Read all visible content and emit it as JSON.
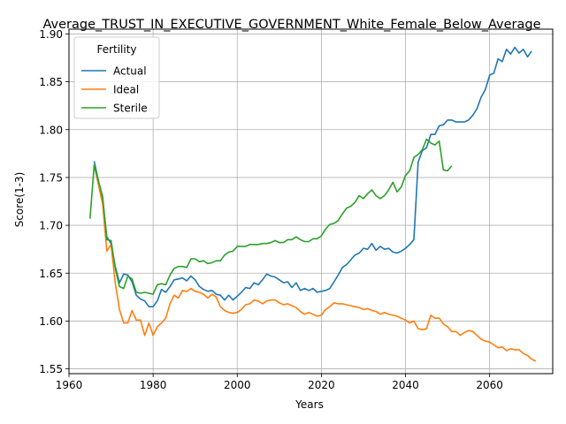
{
  "chart_data": {
    "type": "line",
    "title": "Average_TRUST_IN_EXECUTIVE_GOVERNMENT_White_Female_Below_Average",
    "xlabel": "Years",
    "ylabel": "Score(1-3)",
    "xlim": [
      1960,
      2075
    ],
    "ylim": [
      1.545,
      1.905
    ],
    "xticks": [
      1960,
      1980,
      2000,
      2020,
      2040,
      2060
    ],
    "yticks": [
      1.55,
      1.6,
      1.65,
      1.7,
      1.75,
      1.8,
      1.85,
      1.9
    ],
    "grid": true,
    "legend": {
      "title": "Fertility",
      "position": "top-left"
    },
    "series": [
      {
        "name": "Actual",
        "color": "#1f77b4",
        "points": [
          [
            1966,
            1.767
          ],
          [
            1968,
            1.726
          ],
          [
            1969,
            1.688
          ],
          [
            1970,
            1.681
          ],
          [
            1971,
            1.657
          ],
          [
            1972,
            1.64
          ],
          [
            1973,
            1.649
          ],
          [
            1974,
            1.648
          ],
          [
            1975,
            1.641
          ],
          [
            1976,
            1.627
          ],
          [
            1977,
            1.623
          ],
          [
            1978,
            1.621
          ],
          [
            1979,
            1.615
          ],
          [
            1980,
            1.615
          ],
          [
            1981,
            1.621
          ],
          [
            1982,
            1.633
          ],
          [
            1983,
            1.63
          ],
          [
            1984,
            1.636
          ],
          [
            1985,
            1.643
          ],
          [
            1986,
            1.644
          ],
          [
            1987,
            1.645
          ],
          [
            1988,
            1.642
          ],
          [
            1989,
            1.647
          ],
          [
            1990,
            1.643
          ],
          [
            1991,
            1.636
          ],
          [
            1992,
            1.633
          ],
          [
            1993,
            1.631
          ],
          [
            1994,
            1.632
          ],
          [
            1995,
            1.628
          ],
          [
            1996,
            1.627
          ],
          [
            1997,
            1.622
          ],
          [
            1998,
            1.627
          ],
          [
            1999,
            1.622
          ],
          [
            2000,
            1.626
          ],
          [
            2001,
            1.63
          ],
          [
            2002,
            1.635
          ],
          [
            2003,
            1.634
          ],
          [
            2004,
            1.64
          ],
          [
            2005,
            1.638
          ],
          [
            2006,
            1.643
          ],
          [
            2007,
            1.649
          ],
          [
            2008,
            1.647
          ],
          [
            2009,
            1.646
          ],
          [
            2010,
            1.643
          ],
          [
            2011,
            1.64
          ],
          [
            2012,
            1.641
          ],
          [
            2013,
            1.635
          ],
          [
            2014,
            1.64
          ],
          [
            2015,
            1.632
          ],
          [
            2016,
            1.634
          ],
          [
            2017,
            1.632
          ],
          [
            2018,
            1.634
          ],
          [
            2019,
            1.63
          ],
          [
            2020,
            1.631
          ],
          [
            2021,
            1.632
          ],
          [
            2022,
            1.634
          ],
          [
            2023,
            1.641
          ],
          [
            2024,
            1.648
          ],
          [
            2025,
            1.656
          ],
          [
            2026,
            1.659
          ],
          [
            2027,
            1.664
          ],
          [
            2028,
            1.669
          ],
          [
            2029,
            1.671
          ],
          [
            2030,
            1.676
          ],
          [
            2031,
            1.675
          ],
          [
            2032,
            1.681
          ],
          [
            2033,
            1.674
          ],
          [
            2034,
            1.678
          ],
          [
            2035,
            1.675
          ],
          [
            2036,
            1.676
          ],
          [
            2037,
            1.672
          ],
          [
            2038,
            1.671
          ],
          [
            2039,
            1.673
          ],
          [
            2040,
            1.676
          ],
          [
            2041,
            1.68
          ],
          [
            2042,
            1.685
          ],
          [
            2043,
            1.766
          ],
          [
            2044,
            1.778
          ],
          [
            2045,
            1.781
          ],
          [
            2046,
            1.795
          ],
          [
            2047,
            1.795
          ],
          [
            2048,
            1.804
          ],
          [
            2049,
            1.805
          ],
          [
            2050,
            1.81
          ],
          [
            2051,
            1.81
          ],
          [
            2052,
            1.808
          ],
          [
            2053,
            1.808
          ],
          [
            2054,
            1.808
          ],
          [
            2055,
            1.81
          ],
          [
            2056,
            1.815
          ],
          [
            2057,
            1.822
          ],
          [
            2058,
            1.834
          ],
          [
            2059,
            1.842
          ],
          [
            2060,
            1.857
          ],
          [
            2061,
            1.859
          ],
          [
            2062,
            1.874
          ],
          [
            2063,
            1.871
          ],
          [
            2064,
            1.884
          ],
          [
            2065,
            1.879
          ],
          [
            2066,
            1.886
          ],
          [
            2067,
            1.88
          ],
          [
            2068,
            1.884
          ],
          [
            2069,
            1.876
          ],
          [
            2070,
            1.882
          ]
        ]
      },
      {
        "name": "Ideal",
        "color": "#ff7f0e",
        "points": [
          [
            1966,
            1.763
          ],
          [
            1968,
            1.722
          ],
          [
            1969,
            1.673
          ],
          [
            1970,
            1.68
          ],
          [
            1971,
            1.64
          ],
          [
            1972,
            1.612
          ],
          [
            1973,
            1.598
          ],
          [
            1974,
            1.598
          ],
          [
            1975,
            1.611
          ],
          [
            1976,
            1.601
          ],
          [
            1977,
            1.601
          ],
          [
            1978,
            1.585
          ],
          [
            1979,
            1.598
          ],
          [
            1980,
            1.585
          ],
          [
            1981,
            1.594
          ],
          [
            1982,
            1.598
          ],
          [
            1983,
            1.603
          ],
          [
            1984,
            1.618
          ],
          [
            1985,
            1.627
          ],
          [
            1986,
            1.624
          ],
          [
            1987,
            1.632
          ],
          [
            1988,
            1.631
          ],
          [
            1989,
            1.634
          ],
          [
            1990,
            1.631
          ],
          [
            1991,
            1.63
          ],
          [
            1992,
            1.628
          ],
          [
            1993,
            1.624
          ],
          [
            1994,
            1.628
          ],
          [
            1995,
            1.625
          ],
          [
            1996,
            1.615
          ],
          [
            1997,
            1.611
          ],
          [
            1998,
            1.609
          ],
          [
            1999,
            1.608
          ],
          [
            2000,
            1.609
          ],
          [
            2001,
            1.612
          ],
          [
            2002,
            1.617
          ],
          [
            2003,
            1.618
          ],
          [
            2004,
            1.622
          ],
          [
            2005,
            1.621
          ],
          [
            2006,
            1.618
          ],
          [
            2007,
            1.621
          ],
          [
            2008,
            1.622
          ],
          [
            2009,
            1.622
          ],
          [
            2010,
            1.619
          ],
          [
            2011,
            1.617
          ],
          [
            2012,
            1.618
          ],
          [
            2013,
            1.616
          ],
          [
            2014,
            1.614
          ],
          [
            2015,
            1.61
          ],
          [
            2016,
            1.607
          ],
          [
            2017,
            1.609
          ],
          [
            2018,
            1.607
          ],
          [
            2019,
            1.605
          ],
          [
            2020,
            1.606
          ],
          [
            2021,
            1.612
          ],
          [
            2022,
            1.615
          ],
          [
            2023,
            1.619
          ],
          [
            2024,
            1.618
          ],
          [
            2025,
            1.618
          ],
          [
            2026,
            1.617
          ],
          [
            2027,
            1.616
          ],
          [
            2028,
            1.615
          ],
          [
            2029,
            1.614
          ],
          [
            2030,
            1.612
          ],
          [
            2031,
            1.613
          ],
          [
            2032,
            1.611
          ],
          [
            2033,
            1.61
          ],
          [
            2034,
            1.607
          ],
          [
            2035,
            1.609
          ],
          [
            2036,
            1.607
          ],
          [
            2037,
            1.606
          ],
          [
            2038,
            1.605
          ],
          [
            2039,
            1.603
          ],
          [
            2040,
            1.601
          ],
          [
            2041,
            1.598
          ],
          [
            2042,
            1.6
          ],
          [
            2043,
            1.592
          ],
          [
            2044,
            1.591
          ],
          [
            2045,
            1.592
          ],
          [
            2046,
            1.606
          ],
          [
            2047,
            1.603
          ],
          [
            2048,
            1.603
          ],
          [
            2049,
            1.597
          ],
          [
            2050,
            1.594
          ],
          [
            2051,
            1.589
          ],
          [
            2052,
            1.589
          ],
          [
            2053,
            1.585
          ],
          [
            2054,
            1.588
          ],
          [
            2055,
            1.59
          ],
          [
            2056,
            1.589
          ],
          [
            2057,
            1.585
          ],
          [
            2058,
            1.581
          ],
          [
            2059,
            1.579
          ],
          [
            2060,
            1.578
          ],
          [
            2061,
            1.575
          ],
          [
            2062,
            1.572
          ],
          [
            2063,
            1.573
          ],
          [
            2064,
            1.569
          ],
          [
            2065,
            1.571
          ],
          [
            2066,
            1.57
          ],
          [
            2067,
            1.57
          ],
          [
            2068,
            1.566
          ],
          [
            2069,
            1.564
          ],
          [
            2070,
            1.56
          ],
          [
            2071,
            1.558
          ]
        ]
      },
      {
        "name": "Sterile",
        "color": "#2ca02c",
        "points": [
          [
            1965,
            1.707
          ],
          [
            1966,
            1.763
          ],
          [
            1968,
            1.73
          ],
          [
            1969,
            1.685
          ],
          [
            1970,
            1.684
          ],
          [
            1971,
            1.655
          ],
          [
            1972,
            1.636
          ],
          [
            1973,
            1.634
          ],
          [
            1974,
            1.647
          ],
          [
            1975,
            1.644
          ],
          [
            1976,
            1.63
          ],
          [
            1977,
            1.629
          ],
          [
            1978,
            1.63
          ],
          [
            1979,
            1.629
          ],
          [
            1980,
            1.628
          ],
          [
            1981,
            1.638
          ],
          [
            1982,
            1.639
          ],
          [
            1983,
            1.638
          ],
          [
            1984,
            1.648
          ],
          [
            1985,
            1.655
          ],
          [
            1986,
            1.657
          ],
          [
            1987,
            1.657
          ],
          [
            1988,
            1.656
          ],
          [
            1989,
            1.665
          ],
          [
            1990,
            1.665
          ],
          [
            1991,
            1.662
          ],
          [
            1992,
            1.663
          ],
          [
            1993,
            1.66
          ],
          [
            1994,
            1.661
          ],
          [
            1995,
            1.663
          ],
          [
            1996,
            1.663
          ],
          [
            1997,
            1.669
          ],
          [
            1998,
            1.672
          ],
          [
            1999,
            1.673
          ],
          [
            2000,
            1.678
          ],
          [
            2001,
            1.678
          ],
          [
            2002,
            1.678
          ],
          [
            2003,
            1.68
          ],
          [
            2004,
            1.68
          ],
          [
            2005,
            1.68
          ],
          [
            2006,
            1.681
          ],
          [
            2007,
            1.681
          ],
          [
            2008,
            1.682
          ],
          [
            2009,
            1.684
          ],
          [
            2010,
            1.682
          ],
          [
            2011,
            1.682
          ],
          [
            2012,
            1.685
          ],
          [
            2013,
            1.685
          ],
          [
            2014,
            1.688
          ],
          [
            2015,
            1.685
          ],
          [
            2016,
            1.683
          ],
          [
            2017,
            1.683
          ],
          [
            2018,
            1.686
          ],
          [
            2019,
            1.686
          ],
          [
            2020,
            1.689
          ],
          [
            2021,
            1.696
          ],
          [
            2022,
            1.701
          ],
          [
            2023,
            1.702
          ],
          [
            2024,
            1.705
          ],
          [
            2025,
            1.712
          ],
          [
            2026,
            1.718
          ],
          [
            2027,
            1.72
          ],
          [
            2028,
            1.724
          ],
          [
            2029,
            1.731
          ],
          [
            2030,
            1.728
          ],
          [
            2031,
            1.733
          ],
          [
            2032,
            1.737
          ],
          [
            2033,
            1.731
          ],
          [
            2034,
            1.728
          ],
          [
            2035,
            1.731
          ],
          [
            2036,
            1.737
          ],
          [
            2037,
            1.745
          ],
          [
            2038,
            1.735
          ],
          [
            2039,
            1.74
          ],
          [
            2040,
            1.752
          ],
          [
            2041,
            1.757
          ],
          [
            2042,
            1.771
          ],
          [
            2043,
            1.774
          ],
          [
            2044,
            1.779
          ],
          [
            2045,
            1.79
          ],
          [
            2046,
            1.786
          ],
          [
            2047,
            1.784
          ],
          [
            2048,
            1.788
          ],
          [
            2049,
            1.758
          ],
          [
            2050,
            1.757
          ],
          [
            2051,
            1.762
          ]
        ]
      }
    ]
  }
}
